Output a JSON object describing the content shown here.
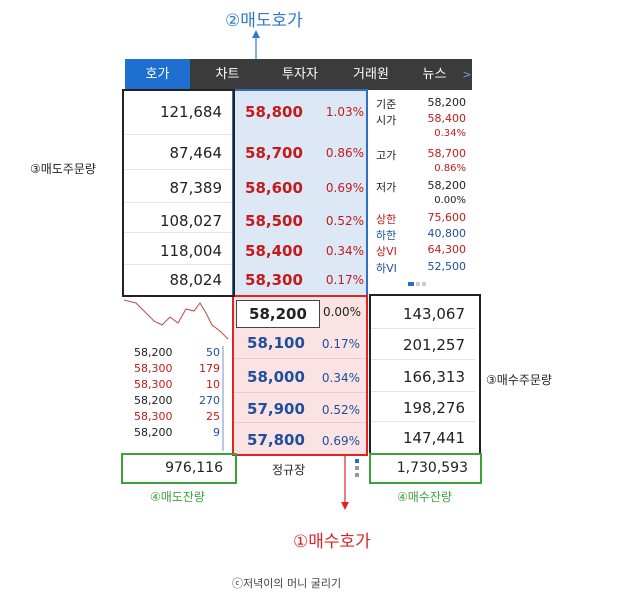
{
  "annotations": {
    "sell_quote": "②매도호가",
    "buy_quote": "①매수호가",
    "sell_order_qty": "③매도주문량",
    "buy_order_qty": "③매수주문량",
    "sell_remaining": "④매도잔량",
    "buy_remaining": "④매수잔량",
    "credit": "ⓒ저녁이의 머니 굴리기"
  },
  "tabs": [
    "호가",
    "차트",
    "투자자",
    "거래원",
    "뉴스"
  ],
  "tab_arrow": ">",
  "sell_rows": [
    {
      "volume": "121,684",
      "price": "58,800",
      "pct": "1.03%"
    },
    {
      "volume": "87,464",
      "price": "58,700",
      "pct": "0.86%"
    },
    {
      "volume": "87,389",
      "price": "58,600",
      "pct": "0.69%"
    },
    {
      "volume": "108,027",
      "price": "58,500",
      "pct": "0.52%"
    },
    {
      "volume": "118,004",
      "price": "58,400",
      "pct": "0.34%"
    },
    {
      "volume": "88,024",
      "price": "58,300",
      "pct": "0.17%"
    }
  ],
  "current": {
    "price": "58,200",
    "pct": "0.00%"
  },
  "buy_rows": [
    {
      "volume": "143,067",
      "price": "58,100",
      "pct": "0.17%"
    },
    {
      "volume": "201,257",
      "price": "58,000",
      "pct": "0.34%"
    },
    {
      "volume": "166,313",
      "price": "57,900",
      "pct": "0.52%"
    },
    {
      "volume": "198,276",
      "price": "57,800",
      "pct": "0.69%"
    },
    {
      "volume": "147,441",
      "price": "",
      "pct": ""
    }
  ],
  "info": [
    {
      "label": "기준",
      "value": "58,200",
      "sub": "",
      "color": "#222222",
      "label_color": "#222222"
    },
    {
      "label": "시가",
      "value": "58,400",
      "sub": "0.34%",
      "color": "#c41a1a",
      "label_color": "#222222"
    },
    {
      "label": "고가",
      "value": "58,700",
      "sub": "0.86%",
      "color": "#c41a1a",
      "label_color": "#222222"
    },
    {
      "label": "저가",
      "value": "58,200",
      "sub": "0.00%",
      "color": "#222222",
      "label_color": "#222222"
    },
    {
      "label": "상한",
      "value": "75,600",
      "sub": "",
      "color": "#c41a1a",
      "label_color": "#c41a1a"
    },
    {
      "label": "하한",
      "value": "40,800",
      "sub": "",
      "color": "#1f4f9e",
      "label_color": "#1f4f9e"
    },
    {
      "label": "상VI",
      "value": "64,300",
      "sub": "",
      "color": "#c41a1a",
      "label_color": "#c41a1a"
    },
    {
      "label": "하VI",
      "value": "52,500",
      "sub": "",
      "color": "#1f4f9e",
      "label_color": "#1f4f9e"
    }
  ],
  "trades": [
    {
      "price": "58,200",
      "qty": "50",
      "price_color": "#222222",
      "qty_color": "#1f4f9e"
    },
    {
      "price": "58,300",
      "qty": "179",
      "price_color": "#c41a1a",
      "qty_color": "#c41a1a"
    },
    {
      "price": "58,300",
      "qty": "10",
      "price_color": "#c41a1a",
      "qty_color": "#c41a1a"
    },
    {
      "price": "58,200",
      "qty": "270",
      "price_color": "#222222",
      "qty_color": "#1f4f9e"
    },
    {
      "price": "58,300",
      "qty": "25",
      "price_color": "#c41a1a",
      "qty_color": "#c41a1a"
    },
    {
      "price": "58,200",
      "qty": "9",
      "price_color": "#222222",
      "qty_color": "#1f4f9e"
    }
  ],
  "totals": {
    "sell_remaining": "976,116",
    "session": "정규장",
    "buy_remaining": "1,730,593"
  }
}
